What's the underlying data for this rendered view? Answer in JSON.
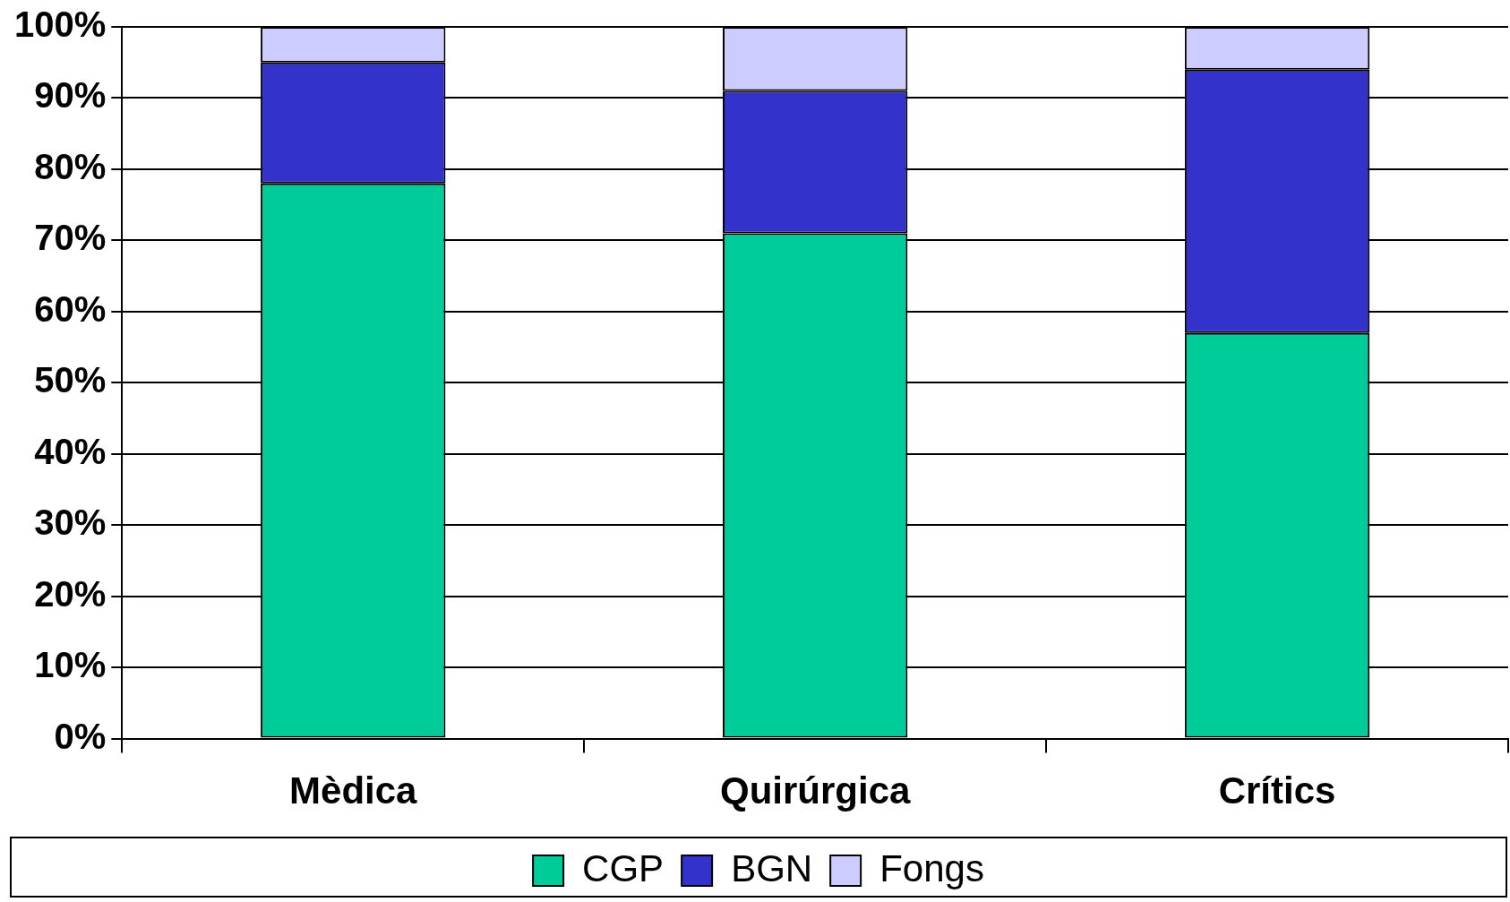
{
  "chart_data": {
    "type": "bar",
    "stacked": true,
    "categories": [
      "Mèdica",
      "Quirúrgica",
      "Crítics"
    ],
    "series": [
      {
        "name": "CGP",
        "color": "#00cc99",
        "values": [
          78,
          71,
          57
        ]
      },
      {
        "name": "BGN",
        "color": "#3333cc",
        "values": [
          17,
          20,
          37
        ]
      },
      {
        "name": "Fongs",
        "color": "#ccccff",
        "values": [
          5,
          9,
          6
        ]
      }
    ],
    "ylim": [
      0,
      100
    ],
    "yticks": [
      {
        "value": 0,
        "label": "0%"
      },
      {
        "value": 10,
        "label": "10%"
      },
      {
        "value": 20,
        "label": "20%"
      },
      {
        "value": 30,
        "label": "30%"
      },
      {
        "value": 40,
        "label": "40%"
      },
      {
        "value": 50,
        "label": "50%"
      },
      {
        "value": 60,
        "label": "60%"
      },
      {
        "value": 70,
        "label": "70%"
      },
      {
        "value": 80,
        "label": "80%"
      },
      {
        "value": 90,
        "label": "90%"
      },
      {
        "value": 100,
        "label": "100%"
      }
    ],
    "grid": "y",
    "legend": "bottom"
  }
}
